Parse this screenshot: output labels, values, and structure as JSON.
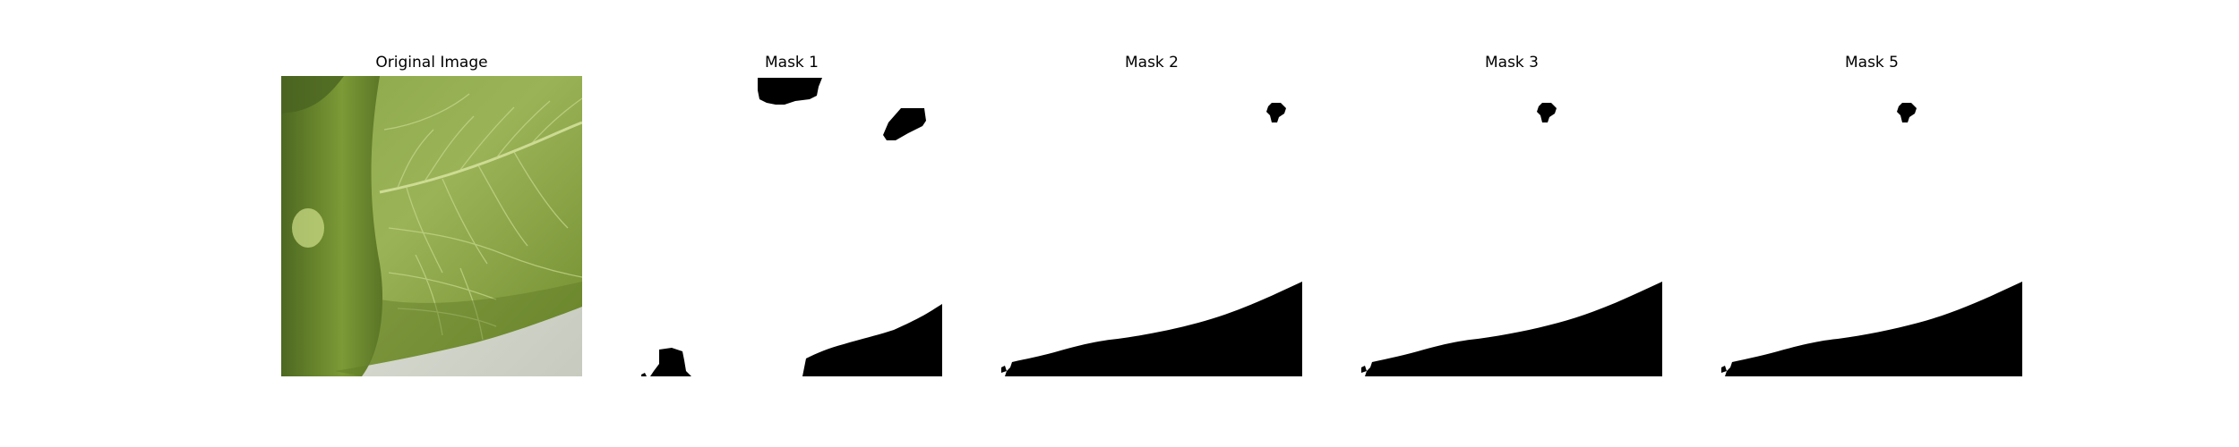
{
  "figure": {
    "panels": [
      {
        "title": "Original Image",
        "kind": "photo"
      },
      {
        "title": "Mask 1",
        "kind": "mask"
      },
      {
        "title": "Mask 2",
        "kind": "mask"
      },
      {
        "title": "Mask 3",
        "kind": "mask"
      },
      {
        "title": "Mask 5",
        "kind": "mask"
      }
    ]
  },
  "colors": {
    "background": "#ffffff",
    "mask_fill": "#000000",
    "leaf_dark": "#4f6a1c",
    "leaf_mid": "#7a9a35",
    "leaf_light": "#a9bf62",
    "vein": "#c9d98e",
    "backdrop": "#d8dbd2"
  }
}
